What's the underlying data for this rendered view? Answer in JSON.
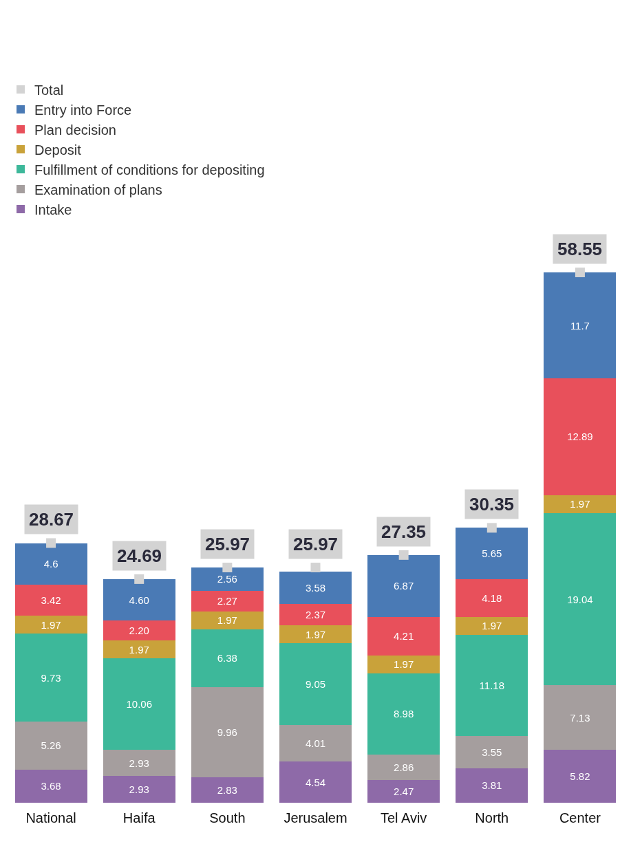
{
  "chart_data": {
    "type": "bar",
    "stacked": true,
    "legend": "top left",
    "tick_labels": "x",
    "categories": [
      "National",
      "Haifa",
      "South",
      "Jerusalem",
      "Tel Aviv",
      "North",
      "Center"
    ],
    "series": [
      {
        "name": "Intake",
        "color": "#8e6aa8",
        "values": [
          3.68,
          2.93,
          2.83,
          4.54,
          2.47,
          3.81,
          5.82
        ],
        "value_labels": [
          "3.68",
          "2.93",
          "2.83",
          "4.54",
          "2.47",
          "3.81",
          "5.82"
        ]
      },
      {
        "name": "Examination of plans",
        "color": "#a59e9e",
        "values": [
          5.26,
          2.93,
          9.96,
          4.01,
          2.86,
          3.55,
          7.13
        ],
        "value_labels": [
          "5.26",
          "2.93",
          "9.96",
          "4.01",
          "2.86",
          "3.55",
          "7.13"
        ]
      },
      {
        "name": "Fulfillment of conditions for depositing",
        "color": "#3db89a",
        "values": [
          9.73,
          10.06,
          6.38,
          9.05,
          8.98,
          11.18,
          19.04
        ],
        "value_labels": [
          "9.73",
          "10.06",
          "6.38",
          "9.05",
          "8.98",
          "11.18",
          "19.04"
        ]
      },
      {
        "name": "Deposit",
        "color": "#c9a23a",
        "values": [
          1.97,
          1.97,
          1.97,
          1.97,
          1.97,
          1.97,
          1.97
        ],
        "value_labels": [
          "1.97",
          "1.97",
          "1.97",
          "1.97",
          "1.97",
          "1.97",
          "1.97"
        ]
      },
      {
        "name": "Plan decision",
        "color": "#e8505b",
        "values": [
          3.42,
          2.2,
          2.27,
          2.37,
          4.21,
          4.18,
          12.89
        ],
        "value_labels": [
          "3.42",
          "2.20",
          "2.27",
          "2.37",
          "4.21",
          "4.18",
          "12.89"
        ]
      },
      {
        "name": "Entry into Force",
        "color": "#4a7ab5",
        "values": [
          4.6,
          4.6,
          2.56,
          3.58,
          6.87,
          5.65,
          11.7
        ],
        "value_labels": [
          "4.6",
          "4.60",
          "2.56",
          "3.58",
          "6.87",
          "5.65",
          "11.7"
        ]
      },
      {
        "name": "Total",
        "type": "scatter",
        "marker": "square",
        "color": "#d3d3d3",
        "values": [
          28.67,
          24.69,
          25.97,
          25.97,
          27.35,
          30.35,
          58.55
        ],
        "value_labels": [
          "28.67",
          "24.69",
          "25.97",
          "25.97",
          "27.35",
          "30.35",
          "58.55"
        ]
      }
    ]
  }
}
